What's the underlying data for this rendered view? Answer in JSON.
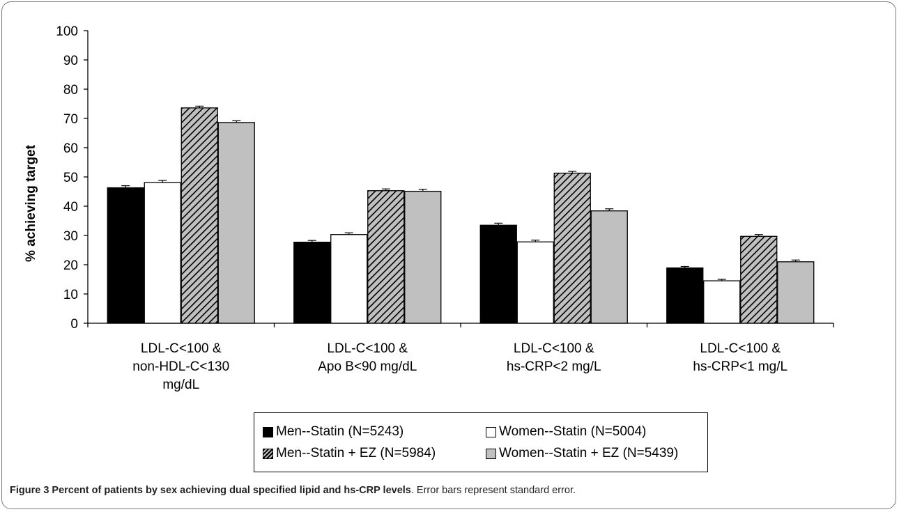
{
  "chart_data": {
    "type": "bar",
    "title": "",
    "ylabel": "% achieving target",
    "xlabel": "",
    "ylim": [
      0,
      100
    ],
    "yticks": [
      0,
      10,
      20,
      30,
      40,
      50,
      60,
      70,
      80,
      90,
      100
    ],
    "grid": false,
    "legend_position": "bottom",
    "categories": [
      [
        "LDL-C<100 &",
        "non-HDL-C<130",
        "mg/dL"
      ],
      [
        "LDL-C<100 &",
        "Apo B<90 mg/dL"
      ],
      [
        "LDL-C<100 &",
        "hs-CRP<2 mg/L"
      ],
      [
        "LDL-C<100 &",
        "hs-CRP<1 mg/L"
      ]
    ],
    "series": [
      {
        "name": "Men--Statin (N=5243)",
        "fill": "#000000",
        "values": [
          46.3,
          27.7,
          33.5,
          18.9
        ],
        "errors": [
          0.7,
          0.6,
          0.7,
          0.5
        ]
      },
      {
        "name": "Women--Statin (N=5004)",
        "fill": "#ffffff",
        "values": [
          48.1,
          30.3,
          27.8,
          14.5
        ],
        "errors": [
          0.7,
          0.6,
          0.6,
          0.5
        ]
      },
      {
        "name": "Men--Statin + EZ (N=5984)",
        "fill": "hatch",
        "values": [
          73.6,
          45.3,
          51.3,
          29.7
        ],
        "errors": [
          0.6,
          0.6,
          0.6,
          0.6
        ]
      },
      {
        "name": "Women--Statin + EZ (N=5439)",
        "fill": "#c0c0c0",
        "values": [
          68.6,
          45.1,
          38.4,
          21.0
        ],
        "errors": [
          0.6,
          0.7,
          0.7,
          0.6
        ]
      }
    ]
  },
  "caption": {
    "title": "Figure 3 Percent of patients by sex achieving dual specified lipid and hs-CRP levels",
    "text": ". Error bars represent standard error."
  }
}
